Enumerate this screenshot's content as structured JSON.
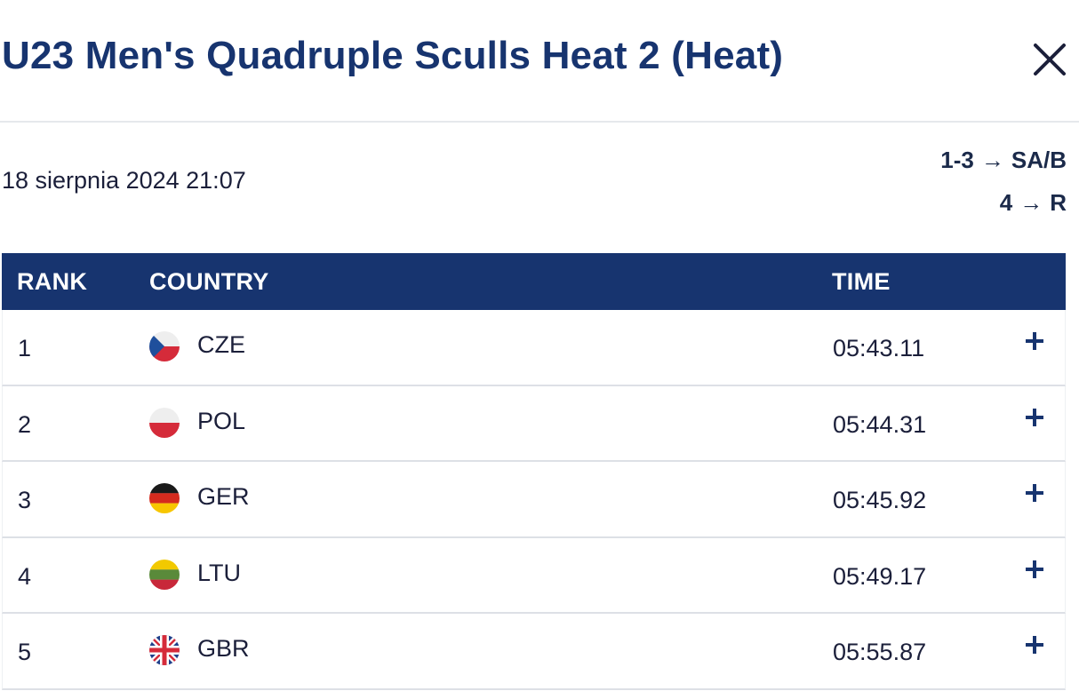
{
  "header": {
    "title": "U23 Men's Quadruple Sculls Heat 2 (Heat)",
    "close_icon": "close-icon"
  },
  "meta": {
    "date": "18 sierpnia 2024 21:07",
    "progression": [
      {
        "ranks": "1-3",
        "arrow": "→",
        "target": "SA/B"
      },
      {
        "ranks": "4",
        "arrow": "→",
        "target": "R"
      }
    ]
  },
  "table": {
    "columns": {
      "rank": "RANK",
      "country": "COUNTRY",
      "time": "TIME"
    },
    "rows": [
      {
        "rank": "1",
        "country": "CZE",
        "flag": "flag-cze-icon",
        "time": "05:43.11"
      },
      {
        "rank": "2",
        "country": "POL",
        "flag": "flag-pol-icon",
        "time": "05:44.31"
      },
      {
        "rank": "3",
        "country": "GER",
        "flag": "flag-ger-icon",
        "time": "05:45.92"
      },
      {
        "rank": "4",
        "country": "LTU",
        "flag": "flag-ltu-icon",
        "time": "05:49.17"
      },
      {
        "rank": "5",
        "country": "GBR",
        "flag": "flag-gbr-icon",
        "time": "05:55.87"
      }
    ],
    "expand_icon": "plus-icon"
  },
  "colors": {
    "brand_navy": "#17346f",
    "text": "#1b1f3a",
    "divider": "#dde0e6"
  }
}
